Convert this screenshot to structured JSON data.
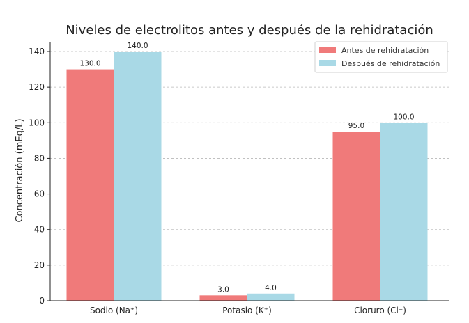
{
  "chart_data": {
    "type": "bar",
    "title": "Niveles de electrolitos antes y después de la rehidratación",
    "xlabel": "",
    "ylabel": "Concentración (mEq/L)",
    "categories": [
      "Sodio (Na⁺)",
      "Potasio (K⁺)",
      "Cloruro (Cl⁻)"
    ],
    "series": [
      {
        "name": "Antes de rehidratación",
        "values": [
          130.0,
          3.0,
          95.0
        ],
        "color": "#f07a7a"
      },
      {
        "name": "Después de rehidratación",
        "values": [
          140.0,
          4.0,
          100.0
        ],
        "color": "#a9d9e6"
      }
    ],
    "ylim": [
      0,
      140
    ],
    "yticks": [
      0,
      20,
      40,
      60,
      80,
      100,
      120,
      140
    ],
    "grid": true,
    "legend_position": "top-right",
    "data_labels": true
  }
}
